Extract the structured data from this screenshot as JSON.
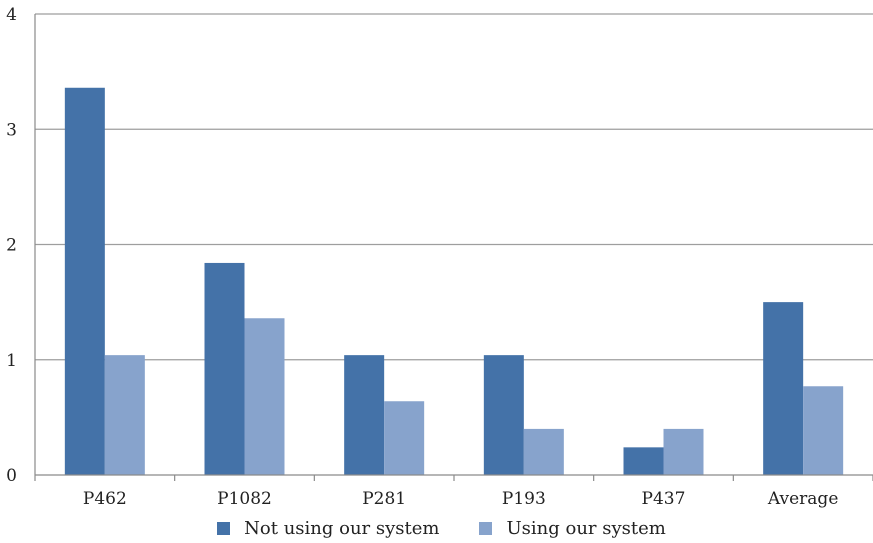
{
  "chart_data": {
    "type": "bar",
    "categories": [
      "P462",
      "P1082",
      "P281",
      "P193",
      "P437",
      "Average"
    ],
    "series": [
      {
        "name": "Not using our system",
        "color": "#4472a8",
        "values": [
          3.36,
          1.84,
          1.04,
          1.04,
          0.24,
          1.5
        ]
      },
      {
        "name": "Using our system",
        "color": "#87a3cc",
        "values": [
          1.04,
          1.36,
          0.64,
          0.4,
          0.4,
          0.77
        ]
      }
    ],
    "title": "",
    "xlabel": "",
    "ylabel": "",
    "ylim": [
      0,
      4
    ],
    "yticks": [
      "0",
      "1",
      "2",
      "3",
      "4"
    ],
    "grid": "horizontal",
    "legend_position": "bottom"
  }
}
